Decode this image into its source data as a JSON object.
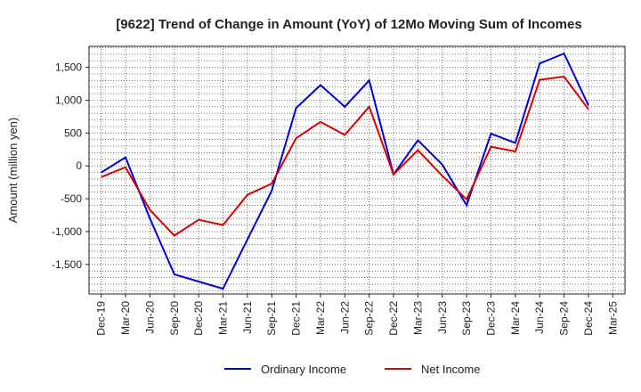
{
  "chart_data": {
    "type": "line",
    "title": "[9622]  Trend of Change in Amount (YoY) of 12Mo Moving Sum of Incomes",
    "ylabel": "Amount (million yen)",
    "xlabel": "",
    "categories": [
      "Dec-19",
      "Mar-20",
      "Jun-20",
      "Sep-20",
      "Dec-20",
      "Mar-21",
      "Jun-21",
      "Sep-21",
      "Dec-21",
      "Mar-22",
      "Jun-22",
      "Sep-22",
      "Dec-22",
      "Mar-23",
      "Jun-23",
      "Sep-23",
      "Dec-23",
      "Mar-24",
      "Jun-24",
      "Sep-24",
      "Dec-24",
      "Mar-25"
    ],
    "ylim": [
      -1950,
      1820
    ],
    "yticks": [
      -1500,
      -1000,
      -500,
      0,
      500,
      1000,
      1500
    ],
    "ytick_labels": [
      "-1,500",
      "-1,000",
      "-500",
      "0",
      "500",
      "1,000",
      "1,500"
    ],
    "grid": true,
    "legend_position": "bottom",
    "series": [
      {
        "name": "Ordinary Income",
        "color": "#0000dd",
        "values": [
          -100,
          130,
          -800,
          -1650,
          -1760,
          -1870,
          -1120,
          -380,
          880,
          1230,
          900,
          1300,
          -130,
          390,
          20,
          -600,
          490,
          350,
          1560,
          1710,
          920,
          null
        ]
      },
      {
        "name": "Net Income",
        "color": "#dd0000",
        "values": [
          -170,
          -20,
          -670,
          -1060,
          -820,
          -900,
          -440,
          -270,
          420,
          670,
          470,
          900,
          -130,
          240,
          -150,
          -510,
          290,
          220,
          1310,
          1360,
          860,
          null
        ]
      }
    ]
  }
}
